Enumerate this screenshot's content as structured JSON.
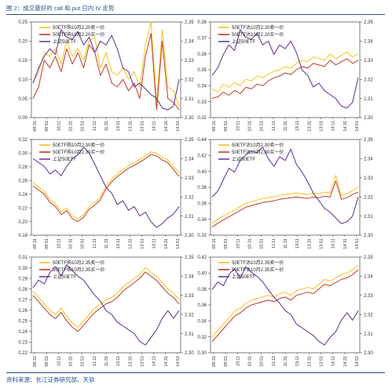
{
  "figure": {
    "title": "图 2：成交最好的 call 和 put 日内 IV 走势",
    "source": "资料来源：长江证券研究部、天软"
  },
  "colors": {
    "call": "#f5c21b",
    "put": "#c0392b",
    "index": "#6a3d9a",
    "accent": "#1f4e8c"
  },
  "x_ticks": [
    "09:31",
    "09:51",
    "10:11",
    "10:31",
    "10:51",
    "11:11",
    "11:31",
    "13:11",
    "13:31",
    "13:51",
    "14:11",
    "14:31",
    "14:51"
  ],
  "chart_data": [
    {
      "type": "line",
      "legend": [
        "50ETF购10月2.20卖一价",
        "50ETF购10月2.20买一价",
        "上证50ETF"
      ],
      "ylim": [
        0,
        0.25
      ],
      "yticks": [
        "0.00",
        "0.05",
        "0.10",
        "0.15",
        "0.20",
        "0.25"
      ],
      "y2lim": [
        2.3,
        2.35
      ],
      "y2ticks": [
        "2.30",
        "2.31",
        "2.32",
        "2.33",
        "2.34",
        "2.35"
      ],
      "series": [
        {
          "name": "50ETF购10月2.20卖一价",
          "values": [
            0.09,
            0.12,
            0.17,
            0.16,
            0.18,
            0.14,
            0.2,
            0.16,
            0.18,
            0.15,
            0.2,
            0.21,
            0.13,
            0.17,
            0.12,
            0.11,
            0.13,
            0.1,
            0.12,
            0.08,
            0.19,
            0.25,
            0.04,
            0.23,
            0.08,
            0.07,
            0.03
          ]
        },
        {
          "name": "50ETF购10月2.20买一价",
          "values": [
            0.05,
            0.08,
            0.15,
            0.13,
            0.16,
            0.12,
            0.18,
            0.14,
            0.17,
            0.13,
            0.19,
            0.17,
            0.11,
            0.14,
            0.09,
            0.08,
            0.1,
            0.07,
            0.09,
            0.05,
            0.16,
            0.22,
            0.02,
            0.2,
            0.05,
            0.04,
            0.02
          ]
        },
        {
          "name": "上证50ETF",
          "axis": "right",
          "values": [
            2.318,
            2.326,
            2.332,
            2.336,
            2.333,
            2.346,
            2.342,
            2.341,
            2.345,
            2.338,
            2.342,
            2.334,
            2.34,
            2.338,
            2.343,
            2.336,
            2.326,
            2.324,
            2.316,
            2.318,
            2.315,
            2.312,
            2.31,
            2.305,
            2.304,
            2.306,
            2.32
          ]
        }
      ]
    },
    {
      "type": "line",
      "legend": [
        "50ETF沽10月2.20卖一价",
        "50ETF沽10月2.20买一价",
        "上证50ETF"
      ],
      "ylim": [
        0.32,
        0.38
      ],
      "yticks": [
        "0.32",
        "0.33",
        "0.34",
        "0.35",
        "0.36",
        "0.37",
        "0.38"
      ],
      "y2lim": [
        2.3,
        2.35
      ],
      "y2ticks": [
        "2.30",
        "2.31",
        "2.32",
        "2.33",
        "2.34",
        "2.35"
      ],
      "series": [
        {
          "name": "50ETF沽10月2.20卖一价",
          "values": [
            0.338,
            0.336,
            0.341,
            0.339,
            0.342,
            0.34,
            0.344,
            0.343,
            0.346,
            0.345,
            0.347,
            0.349,
            0.35,
            0.352,
            0.351,
            0.354,
            0.356,
            0.355,
            0.358,
            0.357,
            0.356,
            0.36,
            0.357,
            0.359,
            0.361,
            0.358,
            0.36
          ]
        },
        {
          "name": "50ETF沽10月2.20买一价",
          "values": [
            0.332,
            0.333,
            0.336,
            0.334,
            0.337,
            0.335,
            0.339,
            0.338,
            0.341,
            0.34,
            0.343,
            0.345,
            0.346,
            0.348,
            0.347,
            0.35,
            0.352,
            0.351,
            0.354,
            0.353,
            0.352,
            0.356,
            0.353,
            0.355,
            0.357,
            0.354,
            0.356
          ]
        },
        {
          "name": "上证50ETF",
          "axis": "right",
          "values": [
            2.322,
            2.326,
            2.333,
            2.338,
            2.335,
            2.346,
            2.342,
            2.341,
            2.344,
            2.338,
            2.34,
            2.333,
            2.338,
            2.336,
            2.34,
            2.334,
            2.325,
            2.322,
            2.316,
            2.318,
            2.314,
            2.312,
            2.31,
            2.306,
            2.305,
            2.308,
            2.321
          ]
        }
      ]
    },
    {
      "type": "line",
      "legend": [
        "50ETF购10月2.30卖一价",
        "50ETF购10月2.30买一价",
        "上证50ETF"
      ],
      "ylim": [
        0.18,
        0.32
      ],
      "yticks": [
        "0.18",
        "0.20",
        "0.22",
        "0.24",
        "0.26",
        "0.28",
        "0.30",
        "0.32"
      ],
      "y2lim": [
        2.3,
        2.35
      ],
      "y2ticks": [
        "2.30",
        "2.31",
        "2.32",
        "2.33",
        "2.34",
        "2.35"
      ],
      "series": [
        {
          "name": "50ETF购10月2.30卖一价",
          "values": [
            0.258,
            0.25,
            0.244,
            0.232,
            0.226,
            0.214,
            0.22,
            0.208,
            0.204,
            0.21,
            0.222,
            0.228,
            0.236,
            0.252,
            0.262,
            0.27,
            0.276,
            0.282,
            0.286,
            0.291,
            0.296,
            0.302,
            0.3,
            0.294,
            0.29,
            0.28,
            0.272
          ]
        },
        {
          "name": "50ETF购10月2.30买一价",
          "values": [
            0.252,
            0.246,
            0.24,
            0.228,
            0.222,
            0.21,
            0.216,
            0.204,
            0.2,
            0.206,
            0.218,
            0.224,
            0.232,
            0.248,
            0.258,
            0.266,
            0.272,
            0.278,
            0.282,
            0.287,
            0.292,
            0.298,
            0.296,
            0.29,
            0.286,
            0.276,
            0.266
          ]
        },
        {
          "name": "上证50ETF",
          "axis": "right",
          "values": [
            2.34,
            2.338,
            2.336,
            2.332,
            2.334,
            2.331,
            2.336,
            2.34,
            2.342,
            2.346,
            2.343,
            2.337,
            2.331,
            2.325,
            2.322,
            2.316,
            2.318,
            2.313,
            2.315,
            2.31,
            2.312,
            2.307,
            2.304,
            2.306,
            2.309,
            2.311,
            2.315
          ]
        }
      ]
    },
    {
      "type": "line",
      "legend": [
        "50ETF沽10月2.30卖一价",
        "50ETF沽10月2.30买一价",
        "上证50ETF"
      ],
      "ylim": [
        0.32,
        0.44
      ],
      "yticks": [
        "0.32",
        "0.34",
        "0.36",
        "0.38",
        "0.40",
        "0.42",
        "0.44"
      ],
      "y2lim": [
        2.3,
        2.35
      ],
      "y2ticks": [
        "2.30",
        "2.31",
        "2.32",
        "2.33",
        "2.34",
        "2.35"
      ],
      "series": [
        {
          "name": "50ETF沽10月2.30卖一价",
          "values": [
            0.335,
            0.34,
            0.344,
            0.348,
            0.352,
            0.356,
            0.36,
            0.362,
            0.364,
            0.366,
            0.367,
            0.368,
            0.37,
            0.371,
            0.372,
            0.373,
            0.372,
            0.371,
            0.373,
            0.372,
            0.374,
            0.373,
            0.395,
            0.37,
            0.372,
            0.376,
            0.38
          ]
        },
        {
          "name": "50ETF沽10月2.30买一价",
          "values": [
            0.33,
            0.335,
            0.339,
            0.343,
            0.347,
            0.351,
            0.355,
            0.357,
            0.359,
            0.361,
            0.362,
            0.363,
            0.365,
            0.366,
            0.367,
            0.368,
            0.367,
            0.366,
            0.368,
            0.367,
            0.369,
            0.368,
            0.388,
            0.365,
            0.367,
            0.371,
            0.374
          ]
        },
        {
          "name": "上证50ETF",
          "axis": "right",
          "values": [
            2.32,
            2.323,
            2.329,
            2.335,
            2.333,
            2.339,
            2.342,
            2.344,
            2.343,
            2.346,
            2.34,
            2.336,
            2.341,
            2.339,
            2.345,
            2.337,
            2.333,
            2.328,
            2.322,
            2.318,
            2.314,
            2.312,
            2.309,
            2.306,
            2.307,
            2.31,
            2.32
          ]
        }
      ]
    },
    {
      "type": "line",
      "legend": [
        "50ETF购10月2.35卖一价",
        "50ETF购10月2.35买一价",
        "上证50ETF"
      ],
      "ylim": [
        0.22,
        0.31
      ],
      "yticks": [
        "0.22",
        "0.23",
        "0.24",
        "0.25",
        "0.26",
        "0.27",
        "0.28",
        "0.29",
        "0.30",
        "0.31"
      ],
      "y2lim": [
        2.3,
        2.35
      ],
      "y2ticks": [
        "2.30",
        "2.31",
        "2.32",
        "2.33",
        "2.34",
        "2.35"
      ],
      "series": [
        {
          "name": "50ETF购10月2.35卖一价",
          "values": [
            0.278,
            0.272,
            0.266,
            0.26,
            0.256,
            0.262,
            0.254,
            0.248,
            0.244,
            0.25,
            0.256,
            0.262,
            0.266,
            0.27,
            0.272,
            0.276,
            0.282,
            0.286,
            0.29,
            0.294,
            0.3,
            0.296,
            0.292,
            0.286,
            0.28,
            0.276,
            0.27
          ]
        },
        {
          "name": "50ETF购10月2.35买一价",
          "values": [
            0.274,
            0.268,
            0.262,
            0.256,
            0.252,
            0.258,
            0.25,
            0.244,
            0.24,
            0.246,
            0.252,
            0.258,
            0.262,
            0.266,
            0.268,
            0.272,
            0.278,
            0.282,
            0.286,
            0.29,
            0.296,
            0.292,
            0.288,
            0.282,
            0.276,
            0.272,
            0.266
          ]
        },
        {
          "name": "上证50ETF",
          "axis": "right",
          "values": [
            2.334,
            2.338,
            2.336,
            2.342,
            2.345,
            2.34,
            2.346,
            2.343,
            2.34,
            2.338,
            2.334,
            2.33,
            2.327,
            2.322,
            2.32,
            2.316,
            2.314,
            2.312,
            2.31,
            2.306,
            2.304,
            2.308,
            2.312,
            2.318,
            2.322,
            2.318,
            2.322
          ]
        }
      ]
    },
    {
      "type": "line",
      "legend": [
        "50ETF沽10月2.35卖一价",
        "50ETF沽10月2.35买一价",
        "上证50ETF"
      ],
      "ylim": [
        0.3,
        0.42
      ],
      "yticks": [
        "0.30",
        "0.32",
        "0.34",
        "0.36",
        "0.38",
        "0.40",
        "0.42"
      ],
      "y2lim": [
        2.3,
        2.35
      ],
      "y2ticks": [
        "2.30",
        "2.31",
        "2.32",
        "2.33",
        "2.34",
        "2.35"
      ],
      "series": [
        {
          "name": "50ETF沽10月2.35卖一价",
          "values": [
            0.32,
            0.328,
            0.336,
            0.344,
            0.352,
            0.356,
            0.362,
            0.366,
            0.368,
            0.37,
            0.372,
            0.37,
            0.374,
            0.376,
            0.372,
            0.378,
            0.38,
            0.382,
            0.38,
            0.386,
            0.392,
            0.39,
            0.394,
            0.398,
            0.4,
            0.404,
            0.41
          ]
        },
        {
          "name": "50ETF沽10月2.35买一价",
          "values": [
            0.314,
            0.322,
            0.33,
            0.338,
            0.346,
            0.35,
            0.356,
            0.36,
            0.362,
            0.364,
            0.366,
            0.364,
            0.368,
            0.37,
            0.366,
            0.372,
            0.374,
            0.376,
            0.374,
            0.38,
            0.386,
            0.384,
            0.388,
            0.392,
            0.394,
            0.398,
            0.404
          ]
        },
        {
          "name": "上证50ETF",
          "axis": "right",
          "values": [
            2.333,
            2.337,
            2.335,
            2.341,
            2.344,
            2.339,
            2.345,
            2.342,
            2.34,
            2.337,
            2.333,
            2.329,
            2.326,
            2.322,
            2.32,
            2.315,
            2.313,
            2.311,
            2.309,
            2.306,
            2.304,
            2.308,
            2.311,
            2.317,
            2.321,
            2.317,
            2.322
          ]
        }
      ]
    }
  ]
}
